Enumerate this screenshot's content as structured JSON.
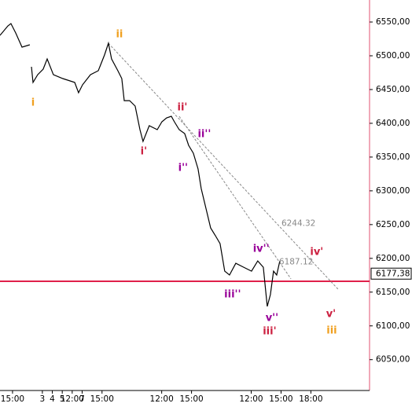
{
  "chart_data": {
    "type": "line",
    "x": [
      -1.26,
      -0.47,
      -0.16,
      0.32,
      0.95,
      1.74,
      1.82,
      1.9,
      2.06,
      2.53,
      3.08,
      3.48,
      4.11,
      5.06,
      6.25,
      6.64,
      7.04,
      7.83,
      8.62,
      9.25,
      9.64,
      9.96,
      10.59,
      10.99,
      11.23,
      11.78,
      12.33,
      12.81,
      13.12,
      13.75,
      14.55,
      15.02,
      15.49,
      15.97,
      16.28,
      16.76,
      17.31,
      17.71,
      18.18,
      18.66,
      18.97,
      19.45,
      19.92,
      20.4,
      20.87,
      21.34,
      21.82,
      22.45,
      23.24,
      24.03,
      24.66,
      25.22,
      25.61,
      25.93,
      26.25,
      26.56,
      26.88
    ],
    "values": [
      6530.2,
      6544.2,
      6547.7,
      6533.7,
      6512.8,
      6516.3,
      null,
      6483.7,
      6460.5,
      6472.0,
      6480.2,
      6495.3,
      6472.0,
      6466.2,
      6460.5,
      6445.3,
      6457.0,
      6472.0,
      6477.9,
      6501.1,
      6518.6,
      6495.3,
      6477.9,
      6466.2,
      6433.6,
      6433.6,
      6425.5,
      6390.6,
      6373.1,
      6396.4,
      6390.6,
      6402.2,
      6408.1,
      6410.4,
      6402.2,
      6390.6,
      6384.8,
      6367.3,
      6355.7,
      6332.4,
      6303.3,
      6274.2,
      6245.1,
      6233.5,
      6221.8,
      6181.1,
      6175.3,
      6192.7,
      6186.9,
      6181.1,
      6196.2,
      6186.9,
      6128.8,
      6146.3,
      6181.1,
      6175.3,
      6196.2
    ],
    "color": "#000000",
    "xlim": [
      -1.26,
      35.9
    ],
    "ylim": [
      6004.3,
      6582.6
    ],
    "xticks": [
      {
        "value": 0,
        "label": "15:00"
      },
      3,
      {
        "value": 6,
        "label": "12:00"
      },
      {
        "value": 9,
        "label": "15:00"
      },
      4,
      {
        "value": 15,
        "label": "12:00"
      },
      {
        "value": 18,
        "label": "15:00"
      },
      5,
      {
        "value": 24,
        "label": "12:00"
      },
      {
        "value": 27,
        "label": "15:00"
      },
      {
        "value": 30,
        "label": "18:00"
      },
      7
    ],
    "yticks": [
      {
        "value": 6550,
        "label": "6550,00"
      },
      {
        "value": 6500,
        "label": "6500,00"
      },
      {
        "value": 6450,
        "label": "6450,00"
      },
      {
        "value": 6400,
        "label": "6400,00"
      },
      {
        "value": 6350,
        "label": "6350,00"
      },
      {
        "value": 6300,
        "label": "6300,00"
      },
      {
        "value": 6250,
        "label": "6250,00"
      },
      {
        "value": 6200,
        "label": "6200,00"
      },
      {
        "value": 6150,
        "label": "6150,00"
      },
      {
        "value": 6100,
        "label": "6100,00"
      },
      {
        "value": 6050,
        "label": "6050,00"
      }
    ],
    "hline": {
      "value": 6166,
      "color": "#e0204a"
    },
    "last_price": {
      "value": 6177.38,
      "label": "6177,38"
    },
    "trendlines": [
      {
        "x": [
          9.64,
          32.73
        ],
        "y": [
          6518.6,
          6154.4
        ],
        "color": "#888888"
      },
      {
        "x": [
          16.76,
          28.0
        ],
        "y": [
          6410.4,
          6169.6
        ],
        "color": "#888888"
      }
    ],
    "annotations": [
      {
        "text": "ii",
        "x": 10.75,
        "y": 6531.4,
        "color": "#f0a020"
      },
      {
        "text": "i",
        "x": 2.06,
        "y": 6430.1,
        "color": "#f0a020"
      },
      {
        "text": "ii'",
        "x": 17.08,
        "y": 6423.1,
        "color": "#cc2040"
      },
      {
        "text": "i'",
        "x": 13.2,
        "y": 6357.9,
        "color": "#cc2040"
      },
      {
        "text": "ii''",
        "x": 19.29,
        "y": 6383.5,
        "color": "#990099"
      },
      {
        "text": "i''",
        "x": 17.15,
        "y": 6333.5,
        "color": "#990099"
      },
      {
        "text": "iv''",
        "x": 25.0,
        "y": 6213.6,
        "color": "#990099"
      },
      {
        "text": "iii''",
        "x": 22.13,
        "y": 6146.1,
        "color": "#990099"
      },
      {
        "text": "v''",
        "x": 26.09,
        "y": 6111.1,
        "color": "#990099"
      },
      {
        "text": "iii'",
        "x": 25.85,
        "y": 6091.3,
        "color": "#cc2040"
      },
      {
        "text": "iv'",
        "x": 30.59,
        "y": 6209.0,
        "color": "#cc2040"
      },
      {
        "text": "v'",
        "x": 32.02,
        "y": 6116.9,
        "color": "#cc2040"
      },
      {
        "text": "iii",
        "x": 32.1,
        "y": 6092.5,
        "color": "#f0a020"
      },
      {
        "text": "6244.32",
        "x": 27.04,
        "y": 6251.3,
        "color": "#888888"
      },
      {
        "text": "6187.12",
        "x": 26.8,
        "y": 6194.3,
        "color": "#888888"
      }
    ]
  }
}
